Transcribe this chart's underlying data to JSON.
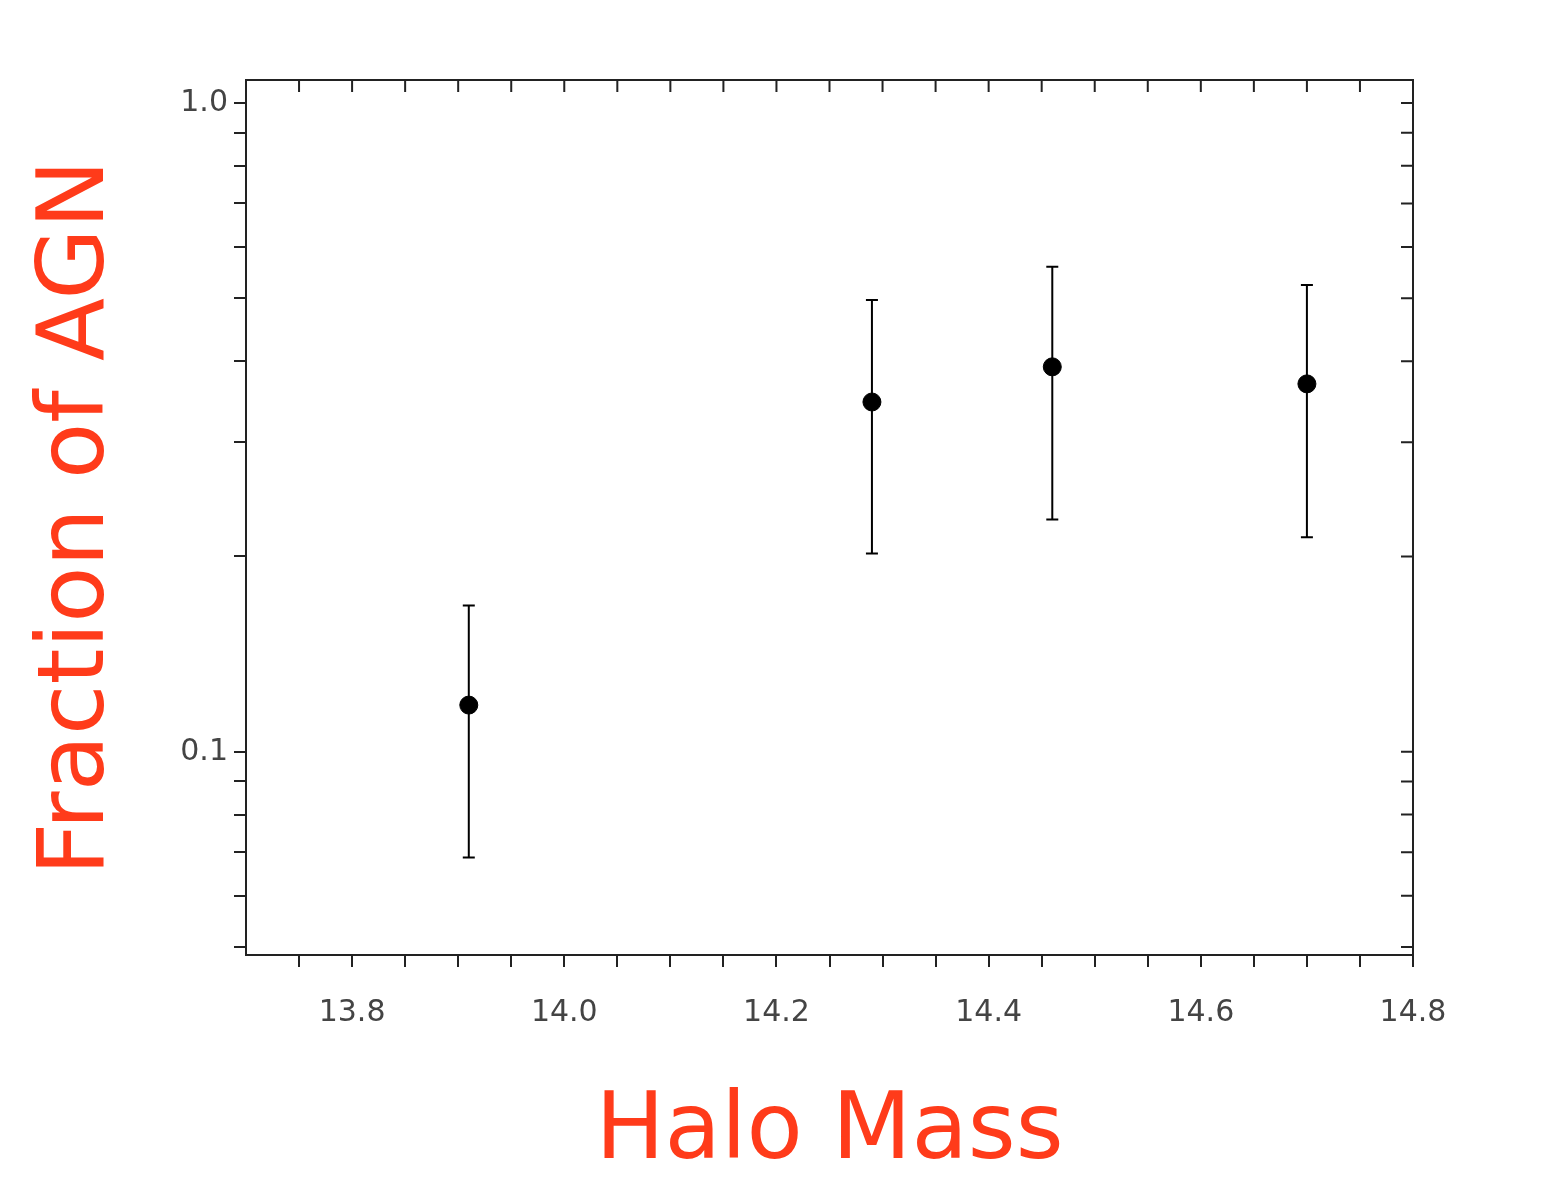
{
  "chart_data": {
    "type": "scatter",
    "xlabel": "Halo Mass",
    "ylabel": "Fraction of AGN",
    "x": [
      13.91,
      14.29,
      14.46,
      14.7
    ],
    "series": [
      {
        "color": "#000000",
        "values": [
          0.118,
          0.346,
          0.392,
          0.369
        ],
        "errors": [
          [
            0.0687,
            0.168
          ],
          [
            0.202,
            0.497
          ],
          [
            0.228,
            0.559
          ],
          [
            0.214,
            0.524
          ]
        ]
      }
    ],
    "xlim": [
      13.7,
      14.8
    ],
    "xticks": [
      {
        "value": 13.75,
        "label": null
      },
      {
        "value": 13.8,
        "label": "13.8"
      },
      {
        "value": 13.85,
        "label": null
      },
      {
        "value": 13.9,
        "label": null
      },
      {
        "value": 13.95,
        "label": null
      },
      {
        "value": 14.0,
        "label": "14.0"
      },
      {
        "value": 14.05,
        "label": null
      },
      {
        "value": 14.1,
        "label": null
      },
      {
        "value": 14.15,
        "label": null
      },
      {
        "value": 14.2,
        "label": "14.2"
      },
      {
        "value": 14.25,
        "label": null
      },
      {
        "value": 14.3,
        "label": null
      },
      {
        "value": 14.35,
        "label": null
      },
      {
        "value": 14.4,
        "label": "14.4"
      },
      {
        "value": 14.45,
        "label": null
      },
      {
        "value": 14.5,
        "label": null
      },
      {
        "value": 14.55,
        "label": null
      },
      {
        "value": 14.6,
        "label": "14.6"
      },
      {
        "value": 14.65,
        "label": null
      },
      {
        "value": 14.7,
        "label": null
      },
      {
        "value": 14.75,
        "label": null
      },
      {
        "value": 14.8,
        "label": "14.8"
      }
    ],
    "ylim": [
      0.0486,
      1.085
    ],
    "yticks": [
      {
        "value": 0.05,
        "label": null
      },
      {
        "value": 0.06,
        "label": null
      },
      {
        "value": 0.07,
        "label": null
      },
      {
        "value": 0.08,
        "label": null
      },
      {
        "value": 0.09,
        "label": null
      },
      {
        "value": 0.1,
        "label": "0.1"
      },
      {
        "value": 0.2,
        "label": null
      },
      {
        "value": 0.3,
        "label": null
      },
      {
        "value": 0.4,
        "label": null
      },
      {
        "value": 0.5,
        "label": null
      },
      {
        "value": 0.6,
        "label": null
      },
      {
        "value": 0.7,
        "label": null
      },
      {
        "value": 0.8,
        "label": null
      },
      {
        "value": 0.9,
        "label": null
      },
      {
        "value": 1.0,
        "label": "1.0"
      }
    ],
    "log": "y",
    "grid": false,
    "legend": false,
    "marker": "circle"
  }
}
